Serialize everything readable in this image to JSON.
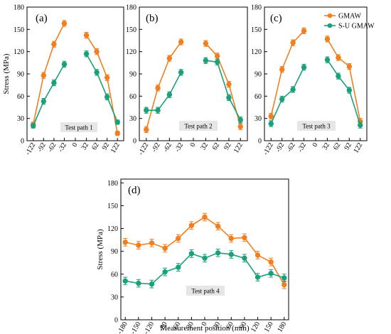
{
  "colors": {
    "gmaw": "#f07f20",
    "su_gmaw": "#1aa07a"
  },
  "legend": {
    "items": [
      "GMAW",
      "S-U GMAW"
    ]
  },
  "chart_data": [
    {
      "type": "line",
      "panel_label": "(a)",
      "annotation": "Test path 1",
      "ylabel": "Stress (MPa)",
      "xlabel": "",
      "xlim": [
        -140,
        140
      ],
      "ylim": [
        0,
        180
      ],
      "xticks": [
        "-122",
        "-92",
        "-62",
        "-32",
        "0",
        "32",
        "62",
        "92",
        "122"
      ],
      "xtick_values": [
        -122,
        -92,
        -62,
        -32,
        0,
        32,
        62,
        92,
        122
      ],
      "yticks": [
        "0",
        "30",
        "60",
        "90",
        "120",
        "150",
        "180"
      ],
      "x": [
        -122,
        -92,
        -62,
        -32,
        32,
        62,
        92,
        122
      ],
      "series": [
        {
          "name": "GMAW",
          "values": [
            22,
            88,
            130,
            158,
            142,
            120,
            85,
            10
          ],
          "errors": [
            3,
            4,
            4,
            4,
            4,
            4,
            4,
            3
          ]
        },
        {
          "name": "S-U GMAW",
          "values": [
            20,
            53,
            78,
            103,
            117,
            92,
            59,
            25
          ],
          "errors": [
            3,
            4,
            4,
            4,
            4,
            4,
            4,
            3
          ]
        }
      ],
      "legend": false
    },
    {
      "type": "line",
      "panel_label": "(b)",
      "annotation": "Test path 2",
      "ylabel": "",
      "xlabel": "",
      "xlim": [
        -140,
        140
      ],
      "ylim": [
        0,
        180
      ],
      "xticks": [
        "-122",
        "-92",
        "-62",
        "-32",
        "0",
        "32",
        "62",
        "92",
        "122"
      ],
      "xtick_values": [
        -122,
        -92,
        -62,
        -32,
        0,
        32,
        62,
        92,
        122
      ],
      "yticks": [
        "0",
        "30",
        "60",
        "90",
        "120",
        "150",
        "180"
      ],
      "x": [
        -122,
        -92,
        -62,
        -32,
        32,
        62,
        92,
        122
      ],
      "series": [
        {
          "name": "GMAW",
          "values": [
            15,
            71,
            111,
            133,
            131,
            114,
            76,
            19
          ],
          "errors": [
            4,
            4,
            4,
            4,
            4,
            4,
            4,
            4
          ]
        },
        {
          "name": "S-U GMAW",
          "values": [
            41,
            41,
            62,
            92,
            108,
            106,
            58,
            28
          ],
          "errors": [
            4,
            4,
            4,
            4,
            4,
            4,
            4,
            4
          ]
        }
      ],
      "legend": false
    },
    {
      "type": "line",
      "panel_label": "(c)",
      "annotation": "Test path 3",
      "ylabel": "",
      "xlabel": "",
      "xlim": [
        -140,
        140
      ],
      "ylim": [
        0,
        180
      ],
      "xticks": [
        "-122",
        "-92",
        "-62",
        "-32",
        "0",
        "32",
        "62",
        "92",
        "122"
      ],
      "xtick_values": [
        -122,
        -92,
        -62,
        -32,
        0,
        32,
        62,
        92,
        122
      ],
      "yticks": [
        "0",
        "30",
        "60",
        "90",
        "120",
        "150",
        "180"
      ],
      "x": [
        -122,
        -92,
        -62,
        -32,
        32,
        62,
        92,
        122
      ],
      "series": [
        {
          "name": "GMAW",
          "values": [
            33,
            96,
            132,
            148,
            137,
            112,
            100,
            26
          ],
          "errors": [
            4,
            4,
            4,
            4,
            4,
            4,
            4,
            4
          ]
        },
        {
          "name": "S-U GMAW",
          "values": [
            23,
            56,
            69,
            99,
            109,
            87,
            68,
            21
          ],
          "errors": [
            4,
            4,
            4,
            4,
            4,
            4,
            4,
            4
          ]
        }
      ],
      "legend": true
    },
    {
      "type": "line",
      "panel_label": "(d)",
      "annotation": "Test path 4",
      "ylabel": "Stress (MPa)",
      "xlabel": "Measurement position (mm)",
      "xlim": [
        -190,
        190
      ],
      "ylim": [
        0,
        185
      ],
      "xticks": [
        "-180",
        "-150",
        "-120",
        "-90",
        "-60",
        "-30",
        "0",
        "30",
        "60",
        "90",
        "120",
        "150",
        "180"
      ],
      "xtick_values": [
        -180,
        -150,
        -120,
        -90,
        -60,
        -30,
        0,
        30,
        60,
        90,
        120,
        150,
        180
      ],
      "yticks": [
        "0",
        "30",
        "60",
        "90",
        "120",
        "150",
        "180"
      ],
      "x": [
        -180,
        -150,
        -120,
        -90,
        -60,
        -30,
        0,
        30,
        60,
        90,
        120,
        150,
        180
      ],
      "series": [
        {
          "name": "GMAW",
          "values": [
            102,
            98,
            101,
            94,
            107,
            124,
            135,
            123,
            107,
            108,
            85,
            76,
            46
          ],
          "errors": [
            5,
            5,
            5,
            5,
            5,
            5,
            5,
            5,
            5,
            5,
            5,
            5,
            5
          ]
        },
        {
          "name": "S-U GMAW",
          "values": [
            51,
            48,
            47,
            63,
            69,
            87,
            81,
            88,
            86,
            81,
            56,
            61,
            55
          ],
          "errors": [
            5,
            5,
            5,
            5,
            5,
            5,
            5,
            5,
            5,
            5,
            5,
            5,
            5
          ]
        }
      ],
      "legend": false
    }
  ]
}
